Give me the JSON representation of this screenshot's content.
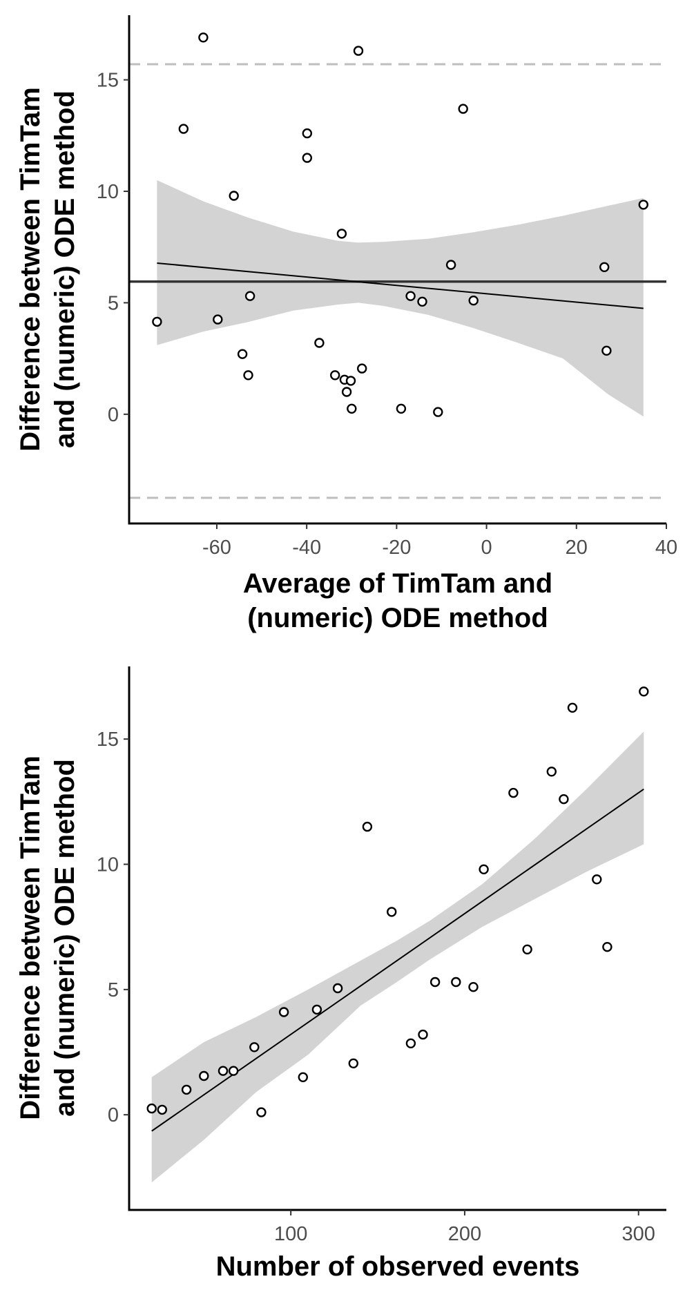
{
  "chart_data": [
    {
      "type": "scatter",
      "title": "",
      "xlabel": [
        "Average of TimTam and",
        "(numeric) ODE method"
      ],
      "ylabel": [
        "Difference between TimTam",
        "and (numeric) ODE method"
      ],
      "xlim": [
        -79.5,
        40
      ],
      "ylim": [
        -4.9,
        17.9
      ],
      "xticks": [
        -60,
        -40,
        -20,
        0,
        20,
        40
      ],
      "xtick_labels": [
        "-60",
        "-40",
        "-20",
        "0",
        "20",
        "40"
      ],
      "yticks": [
        0,
        5,
        10,
        15
      ],
      "ytick_labels": [
        "0",
        "5",
        "10",
        "15"
      ],
      "grid": false,
      "points": [
        {
          "x": -73.3,
          "y": 4.15
        },
        {
          "x": -63.0,
          "y": 16.9
        },
        {
          "x": -67.4,
          "y": 12.8
        },
        {
          "x": -56.2,
          "y": 9.8
        },
        {
          "x": -59.8,
          "y": 4.25
        },
        {
          "x": -52.6,
          "y": 5.3
        },
        {
          "x": -54.3,
          "y": 2.7
        },
        {
          "x": -53.0,
          "y": 1.75
        },
        {
          "x": -39.9,
          "y": 12.6
        },
        {
          "x": -39.9,
          "y": 11.5
        },
        {
          "x": -37.2,
          "y": 3.2
        },
        {
          "x": -32.2,
          "y": 8.1
        },
        {
          "x": -33.7,
          "y": 1.75
        },
        {
          "x": -31.6,
          "y": 1.55
        },
        {
          "x": -31.1,
          "y": 1.0
        },
        {
          "x": -30.2,
          "y": 1.5
        },
        {
          "x": -30.0,
          "y": 0.25
        },
        {
          "x": -28.5,
          "y": 16.3
        },
        {
          "x": -27.7,
          "y": 2.05
        },
        {
          "x": -19.0,
          "y": 0.25
        },
        {
          "x": -16.9,
          "y": 5.3
        },
        {
          "x": -14.3,
          "y": 5.05
        },
        {
          "x": -10.8,
          "y": 0.1
        },
        {
          "x": -7.9,
          "y": 6.7
        },
        {
          "x": -5.2,
          "y": 13.7
        },
        {
          "x": -2.9,
          "y": 5.1
        },
        {
          "x": 26.2,
          "y": 6.6
        },
        {
          "x": 26.7,
          "y": 2.85
        },
        {
          "x": 34.9,
          "y": 9.4
        }
      ],
      "mean_line": {
        "y": 5.95,
        "color": "#333333"
      },
      "limits_of_agreement": {
        "upper": 15.7,
        "lower": -3.75,
        "color": "#bebebe"
      },
      "fit": {
        "x0": -73.3,
        "x1": 34.9,
        "y0": 6.78,
        "y1": 4.75
      },
      "confidence_band": {
        "x": [
          -73.3,
          -63,
          -53,
          -43,
          -33,
          -28.5,
          -23,
          -13,
          -3,
          7,
          17,
          27,
          34.9
        ],
        "upper": [
          10.5,
          9.55,
          8.82,
          8.19,
          7.78,
          7.7,
          7.73,
          7.87,
          8.16,
          8.5,
          8.9,
          9.35,
          9.7
        ],
        "lower": [
          3.1,
          3.71,
          4.14,
          4.65,
          4.92,
          5.0,
          4.86,
          4.46,
          3.87,
          3.2,
          2.5,
          0.9,
          -0.1
        ],
        "color": "#d3d3d3"
      }
    },
    {
      "type": "scatter",
      "title": "",
      "xlabel": [
        "Number of observed events"
      ],
      "ylabel": [
        "Difference between TimTam",
        "and (numeric) ODE method"
      ],
      "xlim": [
        7,
        316
      ],
      "ylim": [
        -3.8,
        17.9
      ],
      "xticks": [
        100,
        200,
        300
      ],
      "xtick_labels": [
        "100",
        "200",
        "300"
      ],
      "yticks": [
        0,
        5,
        10,
        15
      ],
      "ytick_labels": [
        "0",
        "5",
        "10",
        "15"
      ],
      "grid": false,
      "points": [
        {
          "x": 20,
          "y": 0.25
        },
        {
          "x": 26,
          "y": 0.2
        },
        {
          "x": 40,
          "y": 1.0
        },
        {
          "x": 50,
          "y": 1.55
        },
        {
          "x": 61,
          "y": 1.75
        },
        {
          "x": 67,
          "y": 1.75
        },
        {
          "x": 79,
          "y": 2.7
        },
        {
          "x": 83,
          "y": 0.1
        },
        {
          "x": 96,
          "y": 4.1
        },
        {
          "x": 107,
          "y": 1.5
        },
        {
          "x": 115,
          "y": 4.2
        },
        {
          "x": 127,
          "y": 5.05
        },
        {
          "x": 136,
          "y": 2.05
        },
        {
          "x": 144,
          "y": 11.5
        },
        {
          "x": 158,
          "y": 8.1
        },
        {
          "x": 169,
          "y": 2.85
        },
        {
          "x": 176,
          "y": 3.2
        },
        {
          "x": 183,
          "y": 5.3
        },
        {
          "x": 195,
          "y": 5.3
        },
        {
          "x": 205,
          "y": 5.1
        },
        {
          "x": 211,
          "y": 9.8
        },
        {
          "x": 228,
          "y": 12.85
        },
        {
          "x": 236,
          "y": 6.6
        },
        {
          "x": 250,
          "y": 13.7
        },
        {
          "x": 257,
          "y": 12.6
        },
        {
          "x": 262,
          "y": 16.25
        },
        {
          "x": 276,
          "y": 9.4
        },
        {
          "x": 282,
          "y": 6.7
        },
        {
          "x": 303,
          "y": 16.9
        }
      ],
      "fit": {
        "x0": 20,
        "x1": 303,
        "y0": -0.65,
        "y1": 13.0
      },
      "confidence_band": {
        "x": [
          20,
          50,
          80,
          110,
          140,
          161,
          180,
          210,
          240,
          270,
          303
        ],
        "upper": [
          1.5,
          2.9,
          3.9,
          5.0,
          6.15,
          6.95,
          7.75,
          9.2,
          11.0,
          13.0,
          15.3
        ],
        "lower": [
          -2.7,
          -1.0,
          0.9,
          2.4,
          4.35,
          5.3,
          6.2,
          7.5,
          8.6,
          9.7,
          10.8
        ],
        "color": "#d3d3d3"
      }
    }
  ]
}
